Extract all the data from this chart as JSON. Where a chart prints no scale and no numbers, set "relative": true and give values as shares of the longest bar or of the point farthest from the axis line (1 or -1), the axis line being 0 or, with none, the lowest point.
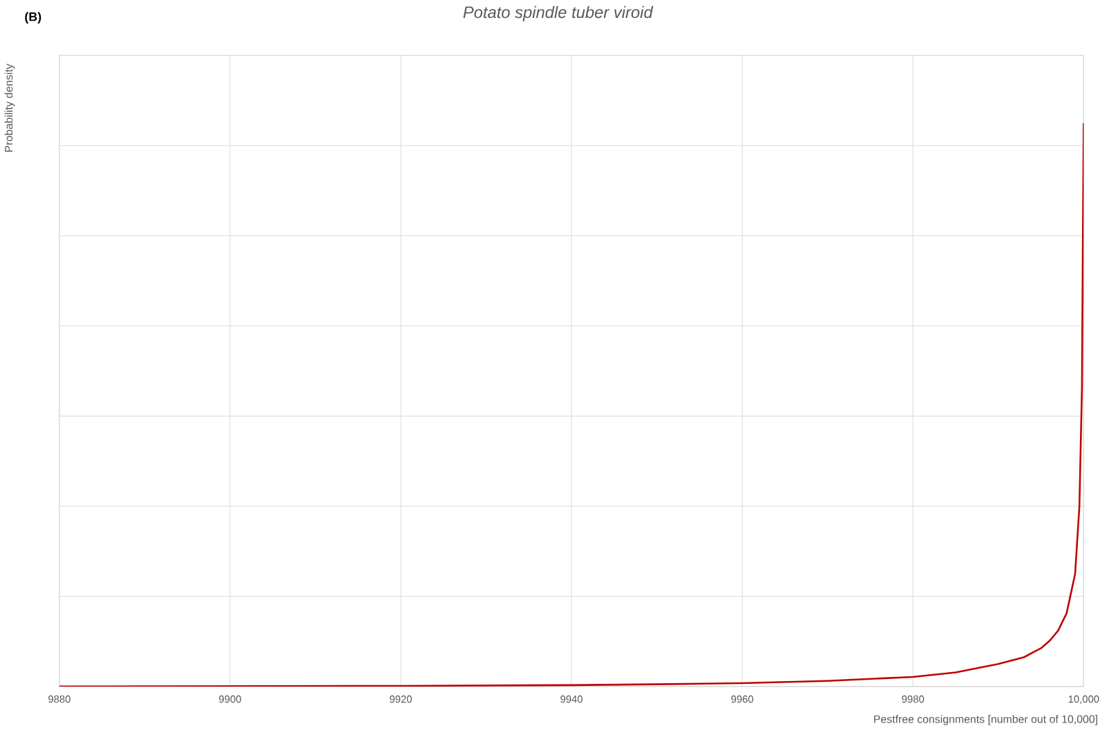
{
  "chart_data": {
    "type": "line",
    "title": "Potato spindle tuber viroid",
    "xlabel": "Pestfree consignments [number out of 10,000]",
    "ylabel": "Probability density",
    "annotations": [
      "(B)"
    ],
    "relative": true,
    "grid": true,
    "tick_labels": "x",
    "marker": "none",
    "xlim": [
      9880,
      10000
    ],
    "xticks": [
      9880,
      9900,
      9920,
      9940,
      9960,
      9980,
      {
        "value": 10000,
        "label": "10,000"
      }
    ],
    "x": [
      9880,
      9900,
      9920,
      9940,
      9950,
      9960,
      9970,
      9980,
      9985,
      9990,
      9993,
      9995,
      9996,
      9997,
      9998,
      9999,
      9999.5,
      9999.8,
      9999.9,
      10000
    ],
    "series": [
      {
        "color": "#c00000",
        "values": [
          0,
          0.0006,
          0.0012,
          0.0025,
          0.004,
          0.006,
          0.01,
          0.017,
          0.025,
          0.04,
          0.052,
          0.068,
          0.081,
          0.099,
          0.13,
          0.2,
          0.32,
          0.53,
          0.78,
          1
        ]
      }
    ]
  }
}
